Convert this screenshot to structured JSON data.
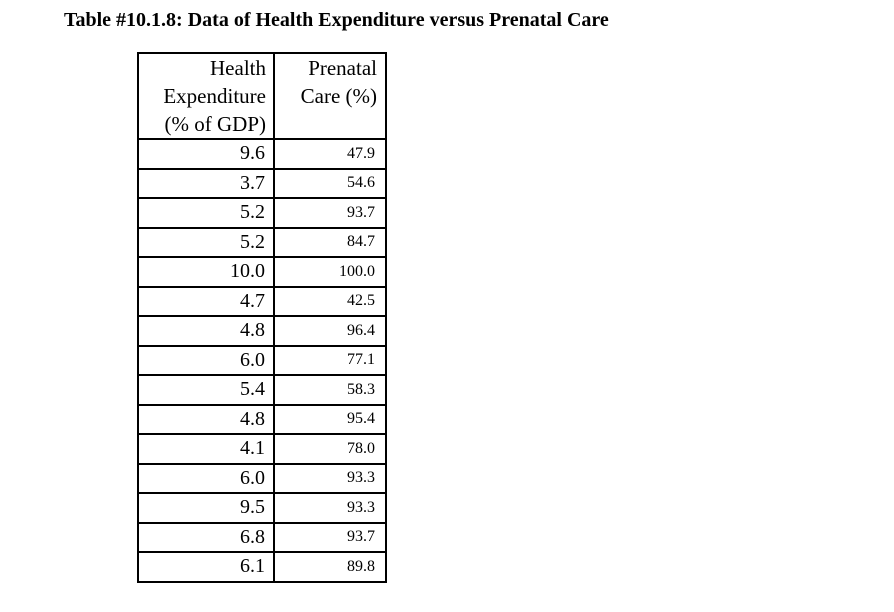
{
  "title": "Table #10.1.8: Data of Health Expenditure versus Prenatal Care",
  "table": {
    "header": {
      "col1_lines": [
        "Health",
        "Expenditure",
        "(% of GDP)"
      ],
      "col2_lines": [
        "Prenatal",
        "Care (%)"
      ]
    },
    "rows": [
      {
        "health_expenditure": "9.6",
        "prenatal_care": "47.9"
      },
      {
        "health_expenditure": "3.7",
        "prenatal_care": "54.6"
      },
      {
        "health_expenditure": "5.2",
        "prenatal_care": "93.7"
      },
      {
        "health_expenditure": "5.2",
        "prenatal_care": "84.7"
      },
      {
        "health_expenditure": "10.0",
        "prenatal_care": "100.0"
      },
      {
        "health_expenditure": "4.7",
        "prenatal_care": "42.5"
      },
      {
        "health_expenditure": "4.8",
        "prenatal_care": "96.4"
      },
      {
        "health_expenditure": "6.0",
        "prenatal_care": "77.1"
      },
      {
        "health_expenditure": "5.4",
        "prenatal_care": "58.3"
      },
      {
        "health_expenditure": "4.8",
        "prenatal_care": "95.4"
      },
      {
        "health_expenditure": "4.1",
        "prenatal_care": "78.0"
      },
      {
        "health_expenditure": "6.0",
        "prenatal_care": "93.3"
      },
      {
        "health_expenditure": "9.5",
        "prenatal_care": "93.3"
      },
      {
        "health_expenditure": "6.8",
        "prenatal_care": "93.7"
      },
      {
        "health_expenditure": "6.1",
        "prenatal_care": "89.8"
      }
    ]
  },
  "colors": {
    "background": "#ffffff",
    "text": "#000000",
    "border": "#000000"
  }
}
